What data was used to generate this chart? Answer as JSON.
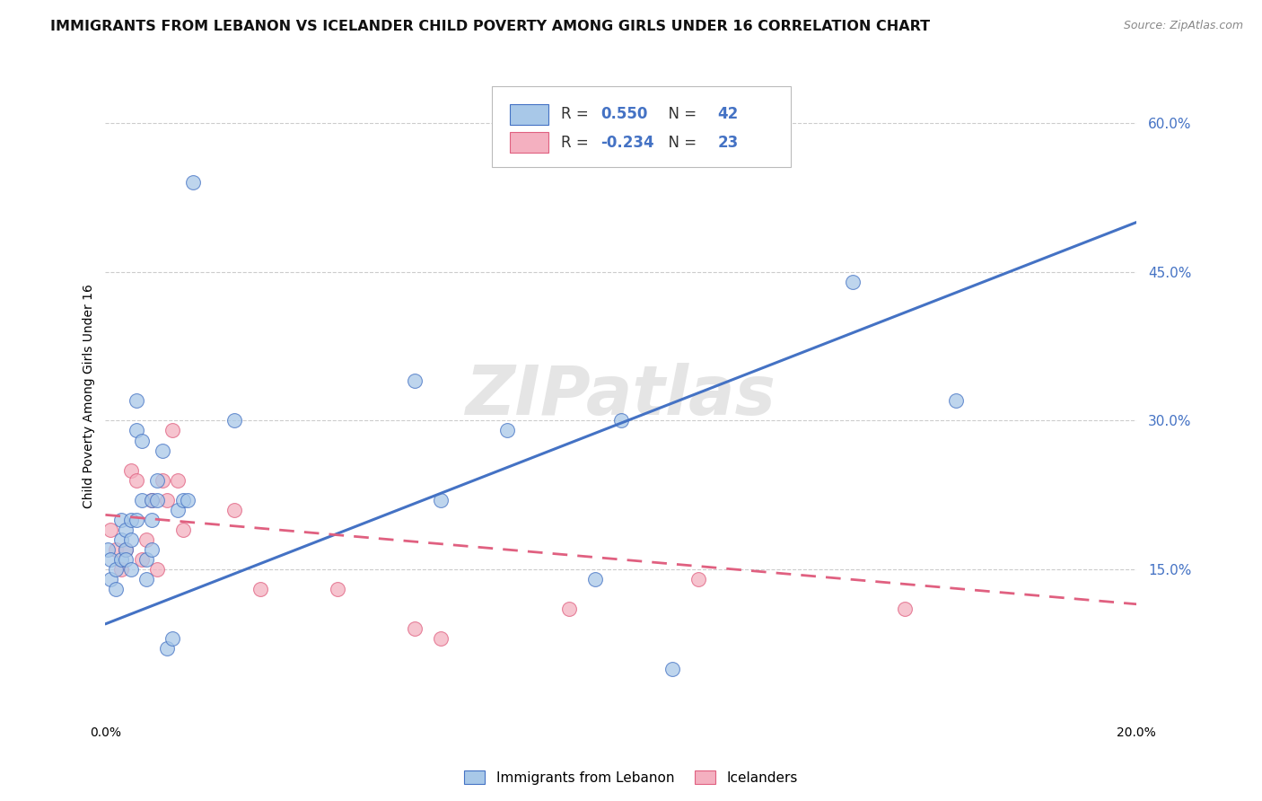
{
  "title": "IMMIGRANTS FROM LEBANON VS ICELANDER CHILD POVERTY AMONG GIRLS UNDER 16 CORRELATION CHART",
  "source": "Source: ZipAtlas.com",
  "ylabel": "Child Poverty Among Girls Under 16",
  "watermark": "ZIPatlas",
  "xlim": [
    0.0,
    0.2
  ],
  "ylim": [
    0.0,
    0.65
  ],
  "yticks": [
    0.15,
    0.3,
    0.45,
    0.6
  ],
  "ytick_labels": [
    "15.0%",
    "30.0%",
    "45.0%",
    "60.0%"
  ],
  "legend_R1": "0.550",
  "legend_N1": "42",
  "legend_R2": "-0.234",
  "legend_N2": "23",
  "color_lebanon": "#a8c8e8",
  "color_icelander": "#f4b0c0",
  "line_color_lebanon": "#4472c4",
  "line_color_icelander": "#e06080",
  "lebanon_scatter_x": [
    0.0005,
    0.001,
    0.001,
    0.002,
    0.002,
    0.003,
    0.003,
    0.003,
    0.004,
    0.004,
    0.004,
    0.005,
    0.005,
    0.005,
    0.006,
    0.006,
    0.006,
    0.007,
    0.007,
    0.008,
    0.008,
    0.009,
    0.009,
    0.009,
    0.01,
    0.01,
    0.011,
    0.012,
    0.013,
    0.014,
    0.015,
    0.016,
    0.017,
    0.025,
    0.06,
    0.065,
    0.078,
    0.095,
    0.1,
    0.145,
    0.165,
    0.11
  ],
  "lebanon_scatter_y": [
    0.17,
    0.14,
    0.16,
    0.13,
    0.15,
    0.18,
    0.16,
    0.2,
    0.17,
    0.19,
    0.16,
    0.18,
    0.2,
    0.15,
    0.2,
    0.29,
    0.32,
    0.28,
    0.22,
    0.14,
    0.16,
    0.17,
    0.2,
    0.22,
    0.22,
    0.24,
    0.27,
    0.07,
    0.08,
    0.21,
    0.22,
    0.22,
    0.54,
    0.3,
    0.34,
    0.22,
    0.29,
    0.14,
    0.3,
    0.44,
    0.32,
    0.05
  ],
  "icelander_scatter_x": [
    0.001,
    0.002,
    0.003,
    0.004,
    0.005,
    0.006,
    0.007,
    0.008,
    0.009,
    0.01,
    0.011,
    0.012,
    0.013,
    0.014,
    0.015,
    0.025,
    0.03,
    0.045,
    0.06,
    0.065,
    0.09,
    0.115,
    0.155
  ],
  "icelander_scatter_y": [
    0.19,
    0.17,
    0.15,
    0.17,
    0.25,
    0.24,
    0.16,
    0.18,
    0.22,
    0.15,
    0.24,
    0.22,
    0.29,
    0.24,
    0.19,
    0.21,
    0.13,
    0.13,
    0.09,
    0.08,
    0.11,
    0.14,
    0.11
  ],
  "lebanon_line_x": [
    0.0,
    0.2
  ],
  "lebanon_line_y": [
    0.095,
    0.5
  ],
  "icelander_line_x": [
    0.0,
    0.2
  ],
  "icelander_line_y": [
    0.205,
    0.115
  ],
  "background_color": "#ffffff",
  "grid_color": "#cccccc",
  "title_fontsize": 11.5,
  "axis_label_fontsize": 10,
  "ytick_fontsize": 11,
  "xtick_fontsize": 10,
  "source_fontsize": 9,
  "watermark_fontsize": 55,
  "scatter_size": 130,
  "legend_R_color": "#4472c4",
  "legend_text_color": "#333333"
}
